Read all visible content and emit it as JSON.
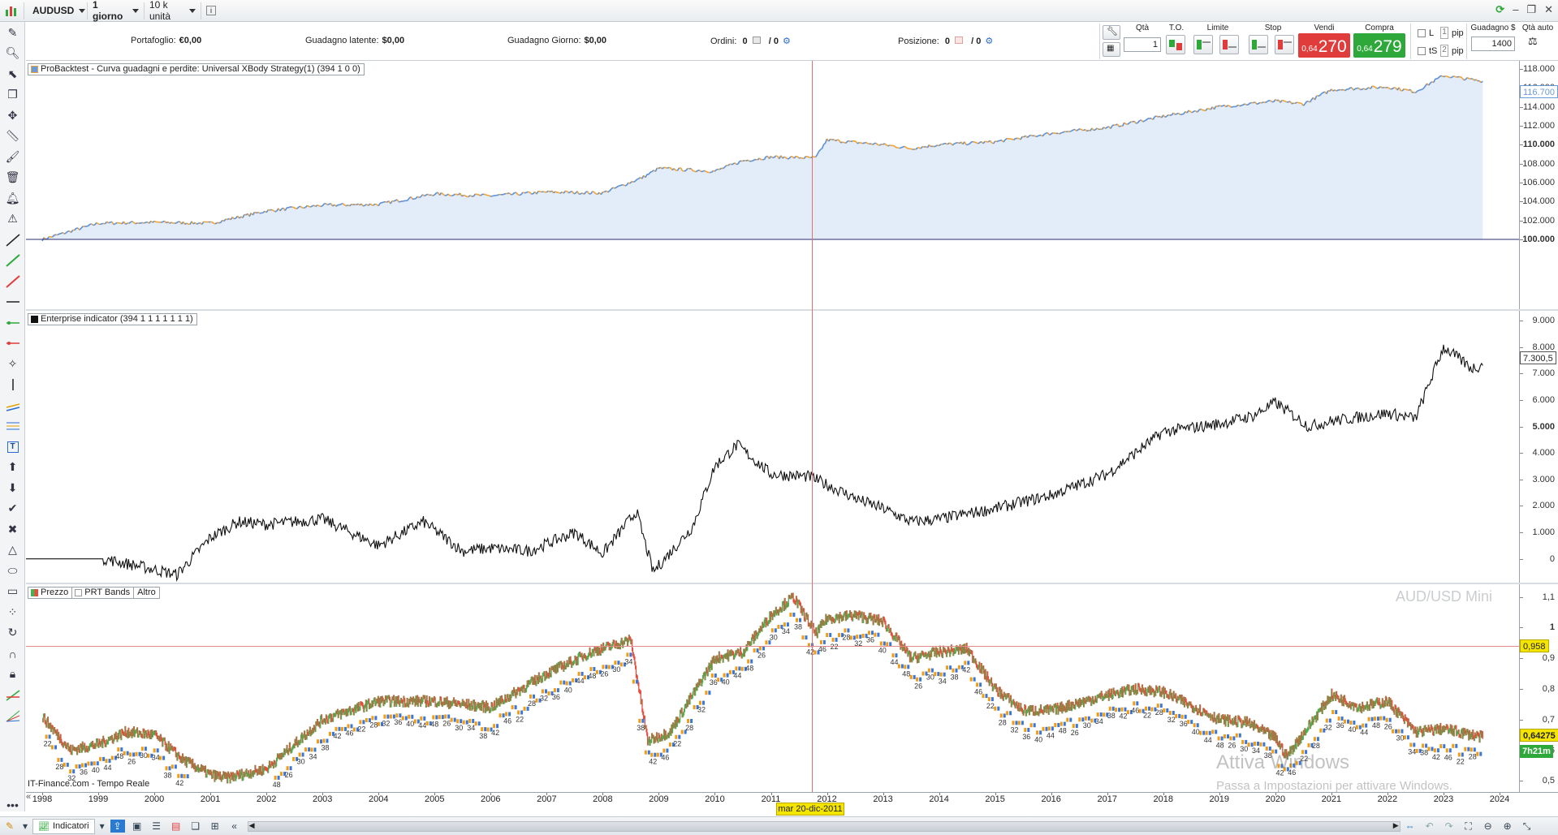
{
  "toolbar": {
    "symbol": "AUDUSD",
    "timeframe": "1 giorno",
    "units": "10 k unità",
    "info": "i"
  },
  "orderbar": {
    "portfolio_label": "Portafoglio:",
    "portfolio_value": "€0,00",
    "latent_label": "Guadagno latente:",
    "latent_value": "$0,00",
    "day_label": "Guadagno Giorno:",
    "day_value": "$0,00",
    "orders_label": "Ordini:",
    "orders_value": "0",
    "orders_sep": "/ 0",
    "position_label": "Posizione:",
    "position_value": "0",
    "position_sep": "/ 0",
    "qty_label": "Qtà",
    "qty_value": "1",
    "to_label": "T.O.",
    "limit_label": "Limite",
    "stop_label": "Stop",
    "sell_label": "Vendi",
    "sell_small": "0,64",
    "sell_big": "270",
    "buy_label": "Compra",
    "buy_small": "0,64",
    "buy_big": "279",
    "l_label": "L",
    "l_value": "1",
    "ts_label": "tS",
    "ts_value": "2",
    "pip_label": "pip",
    "gain_label": "Guadagno $",
    "gain_value": "1400",
    "auto_label": "Qtà auto"
  },
  "panel1": {
    "title": "ProBacktest - Curva guadagni e perdite: Universal XBody Strategy(1) (394 1 0 0)",
    "current": "116.700",
    "yticks": [
      "118.000",
      "116.000",
      "114.000",
      "112.000",
      "110.000",
      "108.000",
      "106.000",
      "104.000",
      "102.000",
      "100.000"
    ]
  },
  "panel2": {
    "title": "Enterprise indicator (394 1 1 1 1 1 1 1)",
    "current": "7.300,5",
    "yticks": [
      "9.000",
      "8.000",
      "7.000",
      "6.000",
      "5.000",
      "4.000",
      "3.000",
      "2.000",
      "1.000",
      "0"
    ]
  },
  "panel3": {
    "tab_price": "Prezzo",
    "tab_bands": "PRT Bands",
    "tab_other": "Altro",
    "instrument": "AUD/USD Mini",
    "crosshair_price": "0,958",
    "last_price": "0,64275",
    "countdown": "7h21m",
    "yticks": [
      "1,1",
      "1",
      "0,9",
      "0,8",
      "0,7",
      "0,6",
      "0,5"
    ],
    "source": "IT-Finance.com - Tempo Reale"
  },
  "xaxis": {
    "years": [
      "1998",
      "1999",
      "2000",
      "2001",
      "2002",
      "2003",
      "2004",
      "2005",
      "2006",
      "2007",
      "2008",
      "2009",
      "2010",
      "2011",
      "2012",
      "2013",
      "2014",
      "2015",
      "2016",
      "2017",
      "2018",
      "2019",
      "2020",
      "2021",
      "2022",
      "2023",
      "2024"
    ],
    "crosshair_date": "mar 20-dic-2011"
  },
  "bottombar": {
    "indicators_label": "Indicatori"
  },
  "windows": {
    "activate_title": "Attiva Windows",
    "activate_sub": "Passa a Impostazioni per attivare Windows."
  },
  "colors": {
    "equity_line": "#5b8fd6",
    "equity_orange": "#f0a030",
    "equity_fill": "#e3ecf9",
    "sell": "#e03c3c",
    "buy": "#2ea83a",
    "crosshair": "#e56d6d",
    "candle_up": "#4caf50",
    "candle_down": "#e74c3c",
    "signal_orange": "#f39c12",
    "signal_blue": "#3a78d8"
  },
  "chart_data": [
    {
      "type": "area",
      "series": [
        {
          "name": "ProBacktest - Curva guadagni e perdite",
          "x": [
            1998,
            1999,
            2000,
            2001,
            2002,
            2003,
            2004,
            2005,
            2006,
            2007,
            2008,
            2008.7,
            2009,
            2010,
            2010.5,
            2011,
            2011.8,
            2012,
            2013,
            2013.5,
            2014,
            2015,
            2016,
            2017,
            2018,
            2019,
            2020,
            2020.5,
            2021,
            2022,
            2022.5,
            2023,
            2023.7
          ],
          "values": [
            100.0,
            101.7,
            101.8,
            101.7,
            103.0,
            103.6,
            103.7,
            104.8,
            104.6,
            105.0,
            104.9,
            106.5,
            107.5,
            107.2,
            108.3,
            108.7,
            108.6,
            110.5,
            110.0,
            109.6,
            110.0,
            110.3,
            111.2,
            111.8,
            113.0,
            114.0,
            114.6,
            114.3,
            115.8,
            116.1,
            115.6,
            117.3,
            116.7
          ]
        }
      ],
      "ylim": [
        100,
        118
      ]
    },
    {
      "type": "line",
      "series": [
        {
          "name": "Enterprise indicator",
          "x": [
            1998,
            1999.1,
            2000,
            2000.4,
            2001,
            2001.5,
            2002,
            2003,
            2004,
            2004.8,
            2005.5,
            2006,
            2006.7,
            2007.5,
            2008,
            2008.6,
            2008.9,
            2009.6,
            2010,
            2010.4,
            2011,
            2011.7,
            2012,
            2012.6,
            2013,
            2013.5,
            2014,
            2015,
            2016,
            2017,
            2018,
            2019,
            2019.6,
            2020,
            2020.6,
            2021,
            2022,
            2022.5,
            2023,
            2023.5,
            2023.7
          ],
          "values": [
            0,
            0,
            -0.4,
            -0.6,
            0.8,
            1.4,
            1.3,
            1.5,
            0.5,
            1.4,
            0.3,
            0.4,
            0.3,
            1.0,
            0.2,
            1.8,
            -0.5,
            1.2,
            3.5,
            4.3,
            3.2,
            3.1,
            2.8,
            2.2,
            1.9,
            1.4,
            1.5,
            1.9,
            2.4,
            3.2,
            4.8,
            5.1,
            5.4,
            5.9,
            5.0,
            5.2,
            5.5,
            5.3,
            8.0,
            7.2,
            7.3
          ]
        }
      ],
      "ylim": [
        -0.5,
        9
      ]
    },
    {
      "type": "line",
      "series": [
        {
          "name": "Prezzo",
          "x": [
            1998,
            1998.5,
            1999,
            1999.5,
            2000,
            2000.5,
            2001,
            2001.3,
            2002,
            2003,
            2004,
            2005,
            2006,
            2007,
            2007.8,
            2008.5,
            2008.8,
            2009.2,
            2010,
            2010.5,
            2011,
            2011.4,
            2011.8,
            2012,
            2012.5,
            2013,
            2013.5,
            2014,
            2014.5,
            2015,
            2015.5,
            2016,
            2017,
            2017.5,
            2018,
            2019,
            2019.5,
            2020,
            2020.2,
            2021,
            2021.5,
            2022,
            2022.5,
            2023,
            2023.7
          ],
          "values": [
            0.71,
            0.6,
            0.62,
            0.66,
            0.65,
            0.57,
            0.52,
            0.51,
            0.54,
            0.7,
            0.76,
            0.76,
            0.74,
            0.85,
            0.92,
            0.96,
            0.63,
            0.66,
            0.9,
            0.92,
            1.04,
            1.1,
            0.98,
            1.03,
            1.04,
            1.02,
            0.9,
            0.92,
            0.93,
            0.8,
            0.73,
            0.73,
            0.78,
            0.8,
            0.79,
            0.7,
            0.69,
            0.64,
            0.58,
            0.78,
            0.74,
            0.76,
            0.66,
            0.67,
            0.64275
          ]
        }
      ],
      "ylim": [
        0.48,
        1.12
      ]
    }
  ]
}
